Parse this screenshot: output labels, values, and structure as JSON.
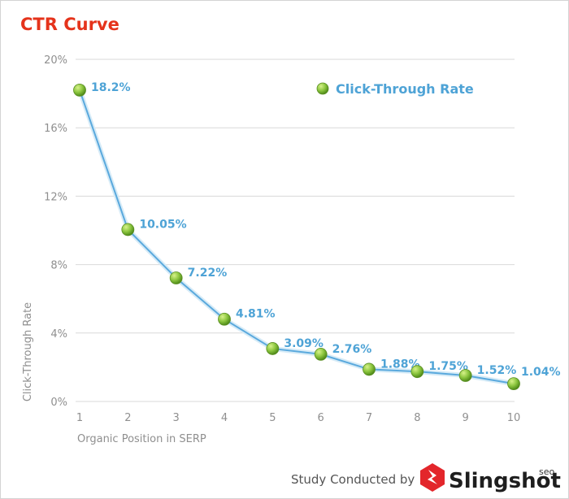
{
  "chart_data": {
    "type": "line",
    "title": "CTR Curve",
    "xlabel": "Organic Position in SERP",
    "ylabel": "Click-Through Rate",
    "x": [
      1,
      2,
      3,
      4,
      5,
      6,
      7,
      8,
      9,
      10
    ],
    "ylim": [
      0,
      20
    ],
    "yticks": [
      "0%",
      "4%",
      "8%",
      "12%",
      "16%",
      "20%"
    ],
    "grid": true,
    "legend_position": "top-right",
    "series": [
      {
        "name": "Click-Through Rate",
        "values": [
          18.2,
          10.05,
          7.22,
          4.81,
          3.09,
          2.76,
          1.88,
          1.75,
          1.52,
          1.04
        ],
        "labels": [
          "18.2%",
          "10.05%",
          "7.22%",
          "4.81%",
          "3.09%",
          "2.76%",
          "1.88%",
          "1.75%",
          "1.52%",
          "1.04%"
        ]
      }
    ]
  },
  "footer": {
    "credit": "Study Conducted by",
    "brand": "Slingshot",
    "brand_suffix": "seo"
  },
  "colors": {
    "title": "#e5331b",
    "line": "#5aa9dd",
    "marker": "#8cc63f",
    "label": "#4ea3d6",
    "logo": "#e3262b"
  }
}
